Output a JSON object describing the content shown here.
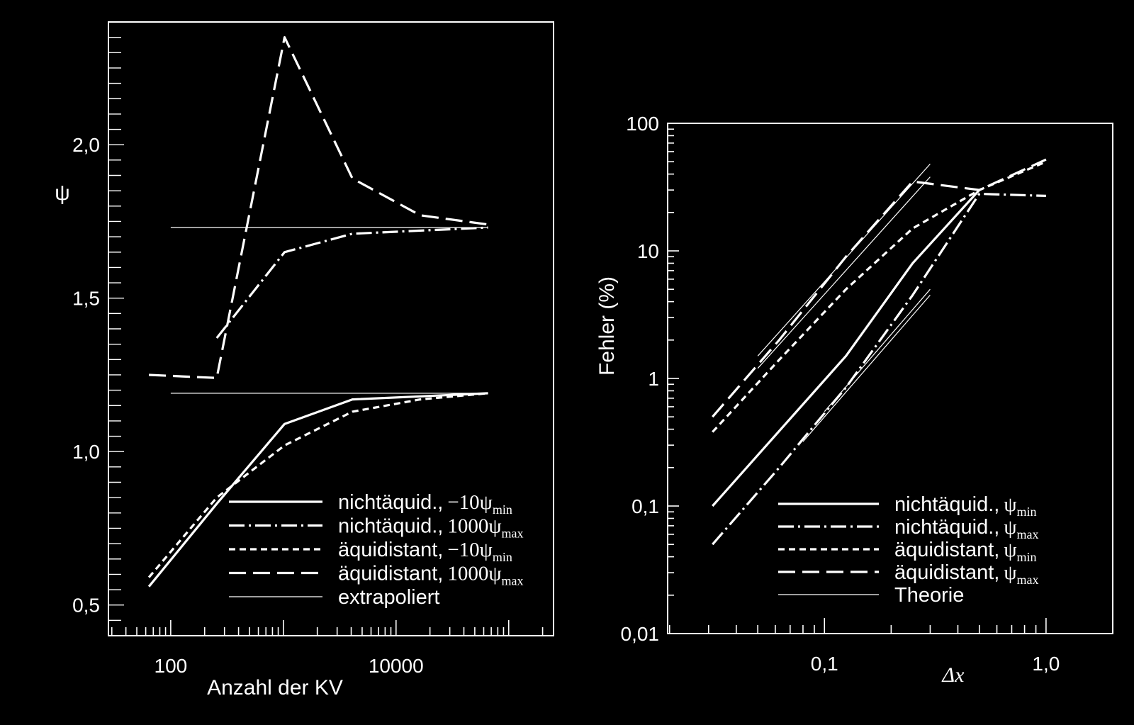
{
  "colors": {
    "background": "#000000",
    "foreground": "#ffffff"
  },
  "chart_data": [
    {
      "type": "line",
      "xlabel": "Anzahl der KV",
      "ylabel": "ψ",
      "xscale": "log",
      "xlim": [
        28,
        250000
      ],
      "ylim": [
        0.4,
        2.4
      ],
      "x_ticks": [
        {
          "value": 100,
          "label": "100"
        },
        {
          "value": 10000,
          "label": "10000"
        }
      ],
      "y_ticks": [
        {
          "value": 0.5,
          "label": "0,5"
        },
        {
          "value": 1.0,
          "label": "1,0"
        },
        {
          "value": 1.5,
          "label": "1,5"
        },
        {
          "value": 2.0,
          "label": "2,0"
        }
      ],
      "grid": false,
      "legend_position": "bottom-right",
      "series": [
        {
          "name": "nichtäquid., −10ψmin",
          "label_prefix": "nichtäquid.,",
          "label_factor": "−10",
          "label_sub": "min",
          "style": "solid",
          "x": [
            64,
            256,
            1024,
            4096,
            16384,
            65536
          ],
          "y": [
            0.56,
            0.83,
            1.09,
            1.17,
            1.18,
            1.19
          ]
        },
        {
          "name": "nichtäquid., 1000ψmax",
          "label_prefix": "nichtäquid.,",
          "label_factor": "1000",
          "label_sub": "max",
          "style": "dashdot",
          "x": [
            256,
            1024,
            4096,
            16384,
            65536
          ],
          "y": [
            1.37,
            1.65,
            1.71,
            1.72,
            1.73
          ]
        },
        {
          "name": "äquidistant, −10ψmin",
          "label_prefix": "äquidistant,",
          "label_factor": "−10",
          "label_sub": "min",
          "style": "shortdash",
          "x": [
            64,
            256,
            1024,
            4096,
            16384,
            65536
          ],
          "y": [
            0.59,
            0.85,
            1.02,
            1.13,
            1.17,
            1.19
          ]
        },
        {
          "name": "äquidistant, 1000ψmax",
          "label_prefix": "äquidistant,",
          "label_factor": "1000",
          "label_sub": "max",
          "style": "longdash",
          "x": [
            64,
            256,
            1024,
            4096,
            16384,
            65536
          ],
          "y": [
            1.25,
            1.24,
            2.35,
            1.89,
            1.77,
            1.74
          ]
        },
        {
          "name": "extrapoliert",
          "label_prefix": "extrapoliert",
          "label_factor": "",
          "label_sub": "",
          "style": "thin",
          "segments": [
            {
              "x": [
                100,
                65536
              ],
              "y": [
                1.73,
                1.73
              ]
            },
            {
              "x": [
                100,
                65536
              ],
              "y": [
                1.19,
                1.19
              ]
            }
          ]
        }
      ]
    },
    {
      "type": "line",
      "xlabel": "Δx",
      "ylabel": "Fehler (%)",
      "xscale": "log",
      "yscale": "log",
      "xlim": [
        0.0196,
        2.0
      ],
      "ylim": [
        0.01,
        100
      ],
      "x_ticks": [
        {
          "value": 0.1,
          "label": "0,1"
        },
        {
          "value": 1.0,
          "label": "1,0"
        }
      ],
      "y_ticks": [
        {
          "value": 0.01,
          "label": "0,01"
        },
        {
          "value": 0.1,
          "label": "0,1"
        },
        {
          "value": 1,
          "label": "1"
        },
        {
          "value": 10,
          "label": "10"
        },
        {
          "value": 100,
          "label": "100"
        }
      ],
      "grid": false,
      "legend_position": "bottom-right",
      "series": [
        {
          "name": "nichtäquid., ψmin",
          "label_prefix": "nichtäquid.,",
          "label_sub": "min",
          "style": "solid",
          "x": [
            0.03125,
            0.125,
            0.25,
            0.5
          ],
          "y": [
            0.1,
            1.5,
            8,
            30
          ]
        },
        {
          "name": "nichtäquid., ψmax",
          "label_prefix": "nichtäquid.,",
          "label_sub": "max",
          "style": "dashdot",
          "x": [
            0.03125,
            0.0625,
            0.125,
            0.25,
            0.5,
            1.0
          ],
          "y": [
            0.05,
            0.2,
            0.85,
            4.5,
            28,
            27
          ]
        },
        {
          "name": "äquidistant, ψmin",
          "label_prefix": "äquidistant,",
          "label_sub": "min",
          "style": "shortdash",
          "x": [
            0.03125,
            0.0625,
            0.125,
            0.25,
            0.5,
            1.0
          ],
          "y": [
            0.38,
            1.4,
            5,
            15,
            30,
            50
          ]
        },
        {
          "name": "äquidistant, ψmax",
          "label_prefix": "äquidistant,",
          "label_sub": "max",
          "style": "longdash",
          "x": [
            0.03125,
            0.0625,
            0.125,
            0.25,
            0.5,
            1.0
          ],
          "y": [
            0.5,
            2.0,
            9,
            35,
            30,
            52
          ]
        },
        {
          "name": "Theorie",
          "label_prefix": "Theorie",
          "label_sub": "",
          "style": "thin",
          "segments": [
            {
              "x": [
                0.05,
                0.3
              ],
              "y": [
                1.5,
                48
              ]
            },
            {
              "x": [
                0.05,
                0.3
              ],
              "y": [
                1.2,
                38
              ]
            },
            {
              "x": [
                0.08,
                0.3
              ],
              "y": [
                0.32,
                4.5
              ]
            },
            {
              "x": [
                0.1,
                0.3
              ],
              "y": [
                0.55,
                5
              ]
            }
          ]
        }
      ]
    }
  ]
}
